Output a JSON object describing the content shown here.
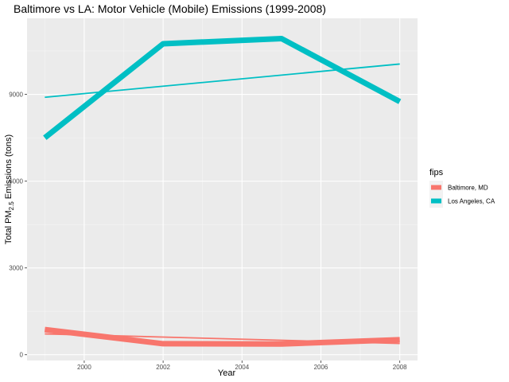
{
  "chart_data": {
    "type": "line",
    "title": "Baltimore vs LA: Motor Vehicle (Mobile) Emissions (1999-2008)",
    "xlabel": "Year",
    "ylabel_prefix": "Total PM",
    "ylabel_subscript": "2.5",
    "ylabel_suffix": " Emissions (tons)",
    "xlim": [
      1998.55,
      2008.45
    ],
    "ylim": [
      -200,
      11630
    ],
    "x_ticks": [
      2000,
      2002,
      2004,
      2006,
      2008
    ],
    "x_tick_labels": [
      "2000",
      "2002",
      "2004",
      "2006",
      "2008"
    ],
    "y_ticks": [
      0,
      3000,
      6000,
      9000
    ],
    "y_tick_labels": [
      "0",
      "3000",
      "6000",
      "9000"
    ],
    "grid": true,
    "legend": {
      "title": "fips",
      "position": "right",
      "entries": [
        "Baltimore, MD",
        "Los Angeles, CA"
      ]
    },
    "series": [
      {
        "name": "Baltimore, MD",
        "color": "#F8766D",
        "x": [
          1999,
          2002,
          2005,
          2008
        ],
        "values": [
          870,
          380,
          370,
          520
        ],
        "trend": [
          720,
          390
        ]
      },
      {
        "name": "Los Angeles, CA",
        "color": "#00BFC4",
        "x": [
          1999,
          2002,
          2005,
          2008
        ],
        "values": [
          7500,
          10750,
          10930,
          8750
        ],
        "trend": [
          8900,
          10050
        ]
      }
    ]
  }
}
